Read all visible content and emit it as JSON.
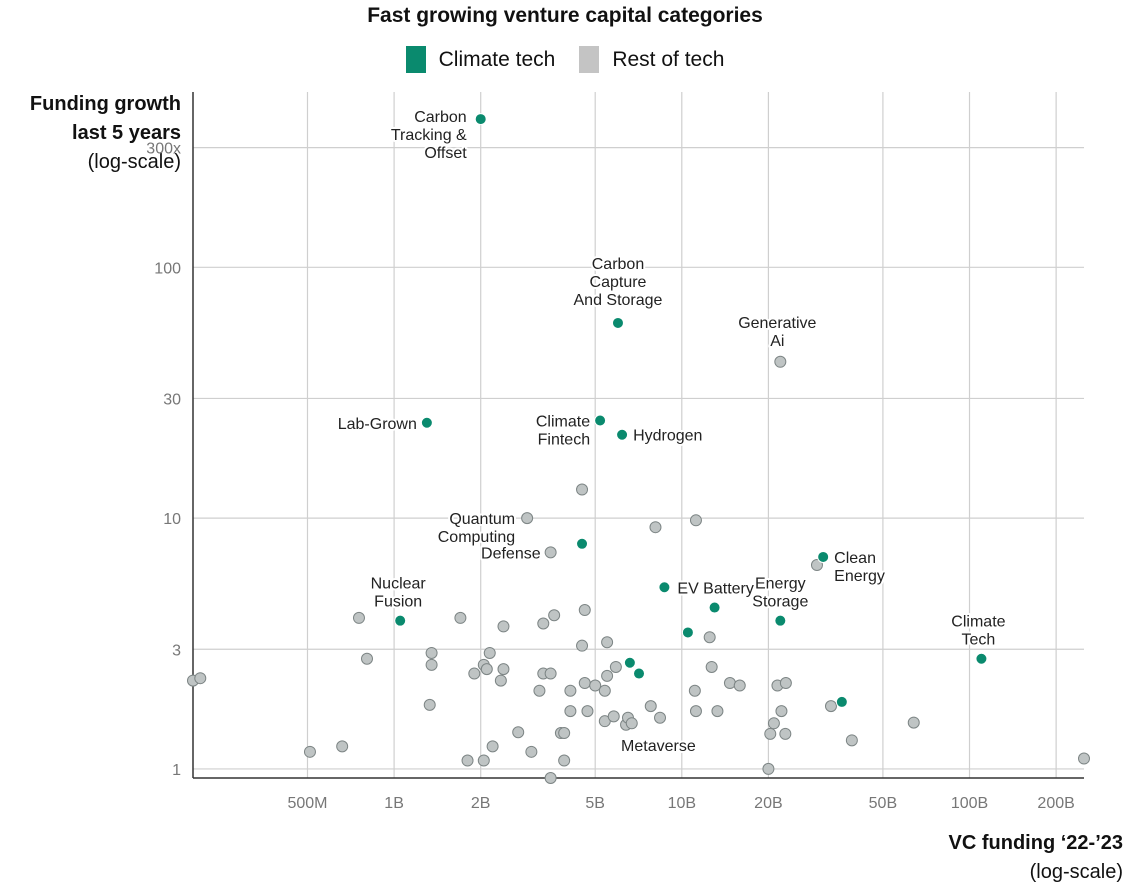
{
  "chart_data": {
    "type": "scatter",
    "title": "Fast growing venture capital categories",
    "ylabel_line1": "Funding growth",
    "ylabel_line2": "last 5 years",
    "ylabel_note": "(log-scale)",
    "xlabel": "VC funding ‘22-’23",
    "xlabel_note": "(log-scale)",
    "x_scale": "log",
    "y_scale": "log",
    "xlim": [
      200000000,
      250000000000
    ],
    "ylim": [
      0.92,
      500
    ],
    "grid": true,
    "legend_position": "top-center",
    "x_ticks": [
      {
        "value": 500000000,
        "label": "500M"
      },
      {
        "value": 1000000000,
        "label": "1B"
      },
      {
        "value": 2000000000,
        "label": "2B"
      },
      {
        "value": 5000000000,
        "label": "5B"
      },
      {
        "value": 10000000000,
        "label": "10B"
      },
      {
        "value": 20000000000,
        "label": "20B"
      },
      {
        "value": 50000000000,
        "label": "50B"
      },
      {
        "value": 100000000000,
        "label": "100B"
      },
      {
        "value": 200000000000,
        "label": "200B"
      }
    ],
    "y_ticks": [
      {
        "value": 1,
        "label": "1"
      },
      {
        "value": 3,
        "label": "3"
      },
      {
        "value": 10,
        "label": "10"
      },
      {
        "value": 30,
        "label": "30"
      },
      {
        "value": 100,
        "label": "100"
      },
      {
        "value": 300,
        "label": "300x"
      }
    ],
    "series": [
      {
        "name": "Climate tech",
        "color": "#0a8a6e",
        "points": [
          {
            "x": 2000000000,
            "y": 390,
            "label": "Carbon Tracking & Offset"
          },
          {
            "x": 6000000000,
            "y": 60,
            "label": "Carbon Capture And Storage"
          },
          {
            "x": 1300000000,
            "y": 24,
            "label": "Lab-Grown"
          },
          {
            "x": 5200000000,
            "y": 24.5,
            "label": "Climate Fintech"
          },
          {
            "x": 6200000000,
            "y": 21.5,
            "label": "Hydrogen"
          },
          {
            "x": 4500000000,
            "y": 7.9,
            "label": ""
          },
          {
            "x": 31000000000,
            "y": 7.0,
            "label": "Clean Energy"
          },
          {
            "x": 8700000000,
            "y": 5.3,
            "label": "EV Battery"
          },
          {
            "x": 13000000000,
            "y": 4.4,
            "label": ""
          },
          {
            "x": 22000000000,
            "y": 3.9,
            "label": "Energy Storage"
          },
          {
            "x": 1050000000,
            "y": 3.9,
            "label": "Nuclear Fusion"
          },
          {
            "x": 10500000000,
            "y": 3.5,
            "label": ""
          },
          {
            "x": 110000000000,
            "y": 2.75,
            "label": "Climate Tech"
          },
          {
            "x": 6600000000,
            "y": 2.65,
            "label": ""
          },
          {
            "x": 7100000000,
            "y": 2.4,
            "label": ""
          },
          {
            "x": 36000000000,
            "y": 1.85,
            "label": ""
          }
        ]
      },
      {
        "name": "Rest of tech",
        "color": "#c4c4c4",
        "points": [
          {
            "x": 22000000000,
            "y": 42,
            "label": "Generative Ai"
          },
          {
            "x": 2900000000,
            "y": 10,
            "label": "Quantum Computing"
          },
          {
            "x": 3500000000,
            "y": 7.3,
            "label": "Defense"
          },
          {
            "x": 6400000000,
            "y": 1.5,
            "label": "Metaverse"
          },
          {
            "x": 4500000000,
            "y": 13,
            "label": ""
          },
          {
            "x": 8100000000,
            "y": 9.2,
            "label": ""
          },
          {
            "x": 11200000000,
            "y": 9.8,
            "label": ""
          },
          {
            "x": 29500000000,
            "y": 6.5,
            "label": ""
          },
          {
            "x": 755000000,
            "y": 4.0,
            "label": ""
          },
          {
            "x": 1700000000,
            "y": 4.0,
            "label": ""
          },
          {
            "x": 2400000000,
            "y": 3.7,
            "label": ""
          },
          {
            "x": 3300000000,
            "y": 3.8,
            "label": ""
          },
          {
            "x": 3600000000,
            "y": 4.1,
            "label": ""
          },
          {
            "x": 4600000000,
            "y": 4.3,
            "label": ""
          },
          {
            "x": 12500000000,
            "y": 3.35,
            "label": ""
          },
          {
            "x": 5500000000,
            "y": 3.2,
            "label": ""
          },
          {
            "x": 4500000000,
            "y": 3.1,
            "label": ""
          },
          {
            "x": 805000000,
            "y": 2.75,
            "label": ""
          },
          {
            "x": 1350000000,
            "y": 2.9,
            "label": ""
          },
          {
            "x": 1350000000,
            "y": 2.6,
            "label": ""
          },
          {
            "x": 2150000000,
            "y": 2.9,
            "label": ""
          },
          {
            "x": 2050000000,
            "y": 2.6,
            "label": ""
          },
          {
            "x": 2100000000,
            "y": 2.5,
            "label": ""
          },
          {
            "x": 1900000000,
            "y": 2.4,
            "label": ""
          },
          {
            "x": 2400000000,
            "y": 2.5,
            "label": ""
          },
          {
            "x": 2350000000,
            "y": 2.25,
            "label": ""
          },
          {
            "x": 3300000000,
            "y": 2.4,
            "label": ""
          },
          {
            "x": 3500000000,
            "y": 2.4,
            "label": ""
          },
          {
            "x": 3200000000,
            "y": 2.05,
            "label": ""
          },
          {
            "x": 4100000000,
            "y": 2.05,
            "label": ""
          },
          {
            "x": 4600000000,
            "y": 2.2,
            "label": ""
          },
          {
            "x": 5000000000,
            "y": 2.15,
            "label": ""
          },
          {
            "x": 5500000000,
            "y": 2.35,
            "label": ""
          },
          {
            "x": 5900000000,
            "y": 2.55,
            "label": ""
          },
          {
            "x": 12700000000,
            "y": 2.55,
            "label": ""
          },
          {
            "x": 14700000000,
            "y": 2.2,
            "label": ""
          },
          {
            "x": 15900000000,
            "y": 2.15,
            "label": ""
          },
          {
            "x": 11100000000,
            "y": 2.05,
            "label": ""
          },
          {
            "x": 21500000000,
            "y": 2.15,
            "label": ""
          },
          {
            "x": 23000000000,
            "y": 2.2,
            "label": ""
          },
          {
            "x": 5400000000,
            "y": 2.05,
            "label": ""
          },
          {
            "x": 1330000000,
            "y": 1.8,
            "label": ""
          },
          {
            "x": 4100000000,
            "y": 1.7,
            "label": ""
          },
          {
            "x": 4700000000,
            "y": 1.7,
            "label": ""
          },
          {
            "x": 5400000000,
            "y": 1.55,
            "label": ""
          },
          {
            "x": 5800000000,
            "y": 1.62,
            "label": ""
          },
          {
            "x": 7800000000,
            "y": 1.78,
            "label": ""
          },
          {
            "x": 8400000000,
            "y": 1.6,
            "label": ""
          },
          {
            "x": 11200000000,
            "y": 1.7,
            "label": ""
          },
          {
            "x": 13300000000,
            "y": 1.7,
            "label": ""
          },
          {
            "x": 22200000000,
            "y": 1.7,
            "label": ""
          },
          {
            "x": 33000000000,
            "y": 1.78,
            "label": ""
          },
          {
            "x": 6500000000,
            "y": 1.6,
            "label": ""
          },
          {
            "x": 6700000000,
            "y": 1.52,
            "label": ""
          },
          {
            "x": 20900000000,
            "y": 1.52,
            "label": ""
          },
          {
            "x": 64000000000,
            "y": 1.53,
            "label": ""
          },
          {
            "x": 2200000000,
            "y": 1.23,
            "label": ""
          },
          {
            "x": 200000000,
            "y": 2.25,
            "label": ""
          },
          {
            "x": 212000000,
            "y": 2.3,
            "label": ""
          },
          {
            "x": 510000000,
            "y": 1.17,
            "label": ""
          },
          {
            "x": 660000000,
            "y": 1.23,
            "label": ""
          },
          {
            "x": 2700000000,
            "y": 1.4,
            "label": ""
          },
          {
            "x": 3000000000,
            "y": 1.17,
            "label": ""
          },
          {
            "x": 3800000000,
            "y": 1.39,
            "label": ""
          },
          {
            "x": 3900000000,
            "y": 1.39,
            "label": ""
          },
          {
            "x": 20300000000,
            "y": 1.38,
            "label": ""
          },
          {
            "x": 22900000000,
            "y": 1.38,
            "label": ""
          },
          {
            "x": 39000000000,
            "y": 1.3,
            "label": ""
          },
          {
            "x": 1800000000,
            "y": 1.08,
            "label": ""
          },
          {
            "x": 2050000000,
            "y": 1.08,
            "label": ""
          },
          {
            "x": 3900000000,
            "y": 1.08,
            "label": ""
          },
          {
            "x": 3500000000,
            "y": 0.92,
            "label": ""
          },
          {
            "x": 20000000000,
            "y": 1.0,
            "label": ""
          },
          {
            "x": 250000000000,
            "y": 1.1,
            "label": ""
          }
        ]
      }
    ]
  }
}
